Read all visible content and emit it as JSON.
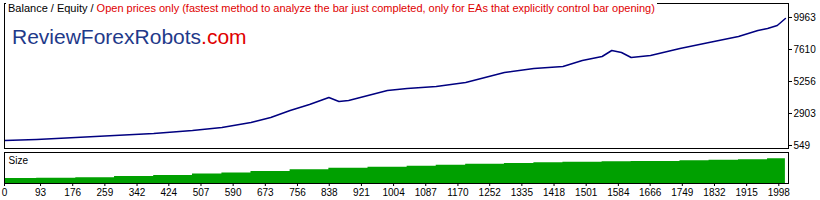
{
  "chart_data": [
    {
      "type": "line",
      "title": "Balance / Equity /",
      "subtitle": "Open prices only (fastest method to analyze the bar just completed, only for EAs that explicitly control bar opening)",
      "annotations": [
        "ReviewForexRobots.com"
      ],
      "x": [
        0,
        83,
        184,
        284,
        385,
        485,
        561,
        636,
        687,
        737,
        787,
        837,
        863,
        888,
        938,
        988,
        1039,
        1114,
        1190,
        1240,
        1290,
        1366,
        1441,
        1491,
        1542,
        1567,
        1592,
        1617,
        1667,
        1743,
        1818,
        1894,
        1944,
        1969,
        1994,
        2015
      ],
      "values": [
        917,
        990,
        1137,
        1285,
        1432,
        1652,
        1873,
        2241,
        2608,
        3123,
        3564,
        4079,
        3785,
        3859,
        4227,
        4594,
        4741,
        4888,
        5183,
        5550,
        5918,
        6212,
        6359,
        6801,
        7095,
        7536,
        7389,
        7021,
        7169,
        7683,
        8124,
        8566,
        9007,
        9154,
        9375,
        9890
      ],
      "color": "#000080",
      "xlim": [
        0,
        2023
      ],
      "ylim": [
        328,
        10992
      ],
      "yticks": [
        549,
        2903,
        5256,
        7610,
        9963
      ],
      "tick_labels": "y",
      "grid": false
    },
    {
      "type": "area",
      "title": "Size",
      "x": [
        0,
        83,
        184,
        284,
        385,
        485,
        561,
        636,
        737,
        837,
        938,
        1039,
        1114,
        1190,
        1290,
        1366,
        1441,
        1542,
        1617,
        1743,
        1818,
        1894,
        1969,
        2015
      ],
      "values": [
        0.17,
        0.18,
        0.2,
        0.24,
        0.28,
        0.33,
        0.37,
        0.42,
        0.48,
        0.53,
        0.57,
        0.6,
        0.64,
        0.67,
        0.7,
        0.72,
        0.74,
        0.76,
        0.77,
        0.79,
        0.81,
        0.83,
        0.86,
        0.88
      ],
      "color": "#00a000",
      "xlim": [
        0,
        2023
      ],
      "ylim": [
        0,
        1.08
      ],
      "xticks": [
        0,
        93,
        176,
        259,
        342,
        424,
        507,
        590,
        673,
        756,
        838,
        921,
        1004,
        1087,
        1170,
        1252,
        1335,
        1418,
        1501,
        1584,
        1666,
        1749,
        1832,
        1915,
        1998
      ],
      "tick_labels": "x",
      "grid": false
    }
  ]
}
